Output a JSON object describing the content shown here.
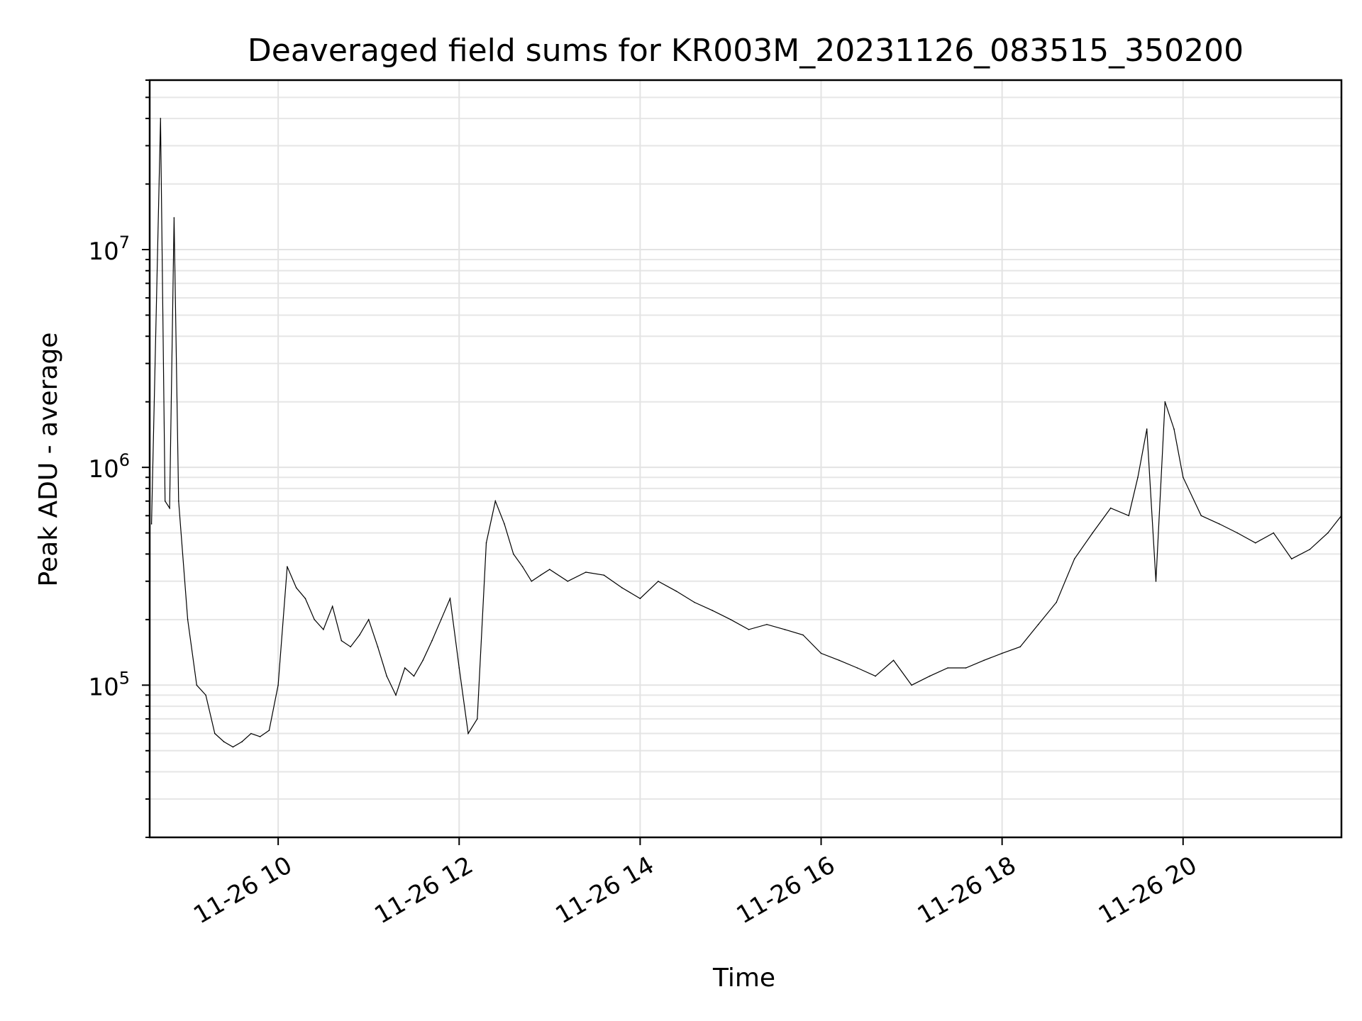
{
  "chart_data": {
    "type": "line",
    "title": "Deaveraged field sums for KR003M_20231126_083515_350200",
    "xlabel": "Time",
    "ylabel": "Peak ADU - average",
    "x_ticks": [
      "11-26 10",
      "11-26 12",
      "11-26 14",
      "11-26 16",
      "11-26 18",
      "11-26 20"
    ],
    "y_ticks": [
      {
        "exp": "5",
        "value": 100000
      },
      {
        "exp": "6",
        "value": 1000000
      },
      {
        "exp": "7",
        "value": 10000000
      }
    ],
    "x_range_hours": [
      8.58,
      21.75
    ],
    "y_scale": "log",
    "ylim": [
      20000,
      60000000
    ],
    "grid": true,
    "series": [
      {
        "x_hours": [
          8.6,
          8.7,
          8.75,
          8.8,
          8.85,
          8.9,
          9.0,
          9.1,
          9.2,
          9.3,
          9.4,
          9.5,
          9.6,
          9.7,
          9.8,
          9.9,
          10.0,
          10.1,
          10.2,
          10.3,
          10.4,
          10.5,
          10.6,
          10.7,
          10.8,
          10.9,
          11.0,
          11.1,
          11.2,
          11.3,
          11.4,
          11.5,
          11.6,
          11.7,
          11.8,
          11.9,
          12.0,
          12.1,
          12.2,
          12.3,
          12.4,
          12.5,
          12.6,
          12.7,
          12.8,
          12.9,
          13.0,
          13.2,
          13.4,
          13.6,
          13.8,
          14.0,
          14.2,
          14.4,
          14.6,
          14.8,
          15.0,
          15.2,
          15.4,
          15.6,
          15.8,
          16.0,
          16.2,
          16.4,
          16.6,
          16.8,
          17.0,
          17.2,
          17.4,
          17.6,
          17.8,
          18.0,
          18.2,
          18.4,
          18.6,
          18.8,
          19.0,
          19.2,
          19.4,
          19.5,
          19.6,
          19.7,
          19.8,
          19.9,
          20.0,
          20.2,
          20.4,
          20.6,
          20.8,
          21.0,
          21.2,
          21.4,
          21.6,
          21.75
        ],
        "y_values": [
          550000,
          40000000,
          700000,
          650000,
          14000000,
          700000,
          200000,
          100000,
          90000,
          60000,
          55000,
          52000,
          55000,
          60000,
          58000,
          62000,
          100000,
          350000,
          280000,
          250000,
          200000,
          180000,
          230000,
          160000,
          150000,
          170000,
          200000,
          150000,
          110000,
          90000,
          120000,
          110000,
          130000,
          160000,
          200000,
          250000,
          120000,
          60000,
          70000,
          450000,
          700000,
          550000,
          400000,
          350000,
          300000,
          320000,
          340000,
          300000,
          330000,
          320000,
          280000,
          250000,
          300000,
          270000,
          240000,
          220000,
          200000,
          180000,
          190000,
          180000,
          170000,
          140000,
          130000,
          120000,
          110000,
          130000,
          100000,
          110000,
          120000,
          120000,
          130000,
          140000,
          150000,
          190000,
          240000,
          380000,
          500000,
          650000,
          600000,
          900000,
          1500000,
          300000,
          2000000,
          1500000,
          900000,
          600000,
          550000,
          500000,
          450000,
          500000,
          380000,
          420000,
          500000,
          600000
        ]
      }
    ]
  }
}
